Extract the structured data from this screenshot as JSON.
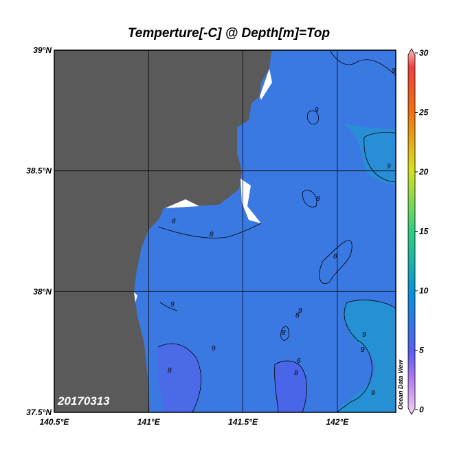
{
  "title": "Temperture[-C] @ Depth[m]=Top",
  "map": {
    "xlim": [
      140.5,
      142.31
    ],
    "ylim": [
      37.5,
      39
    ],
    "xticks": [
      {
        "value": 140.5,
        "label": "140.5°E"
      },
      {
        "value": 141,
        "label": "141°E"
      },
      {
        "value": 141.5,
        "label": "141.5°E"
      },
      {
        "value": 142,
        "label": "142°E"
      }
    ],
    "yticks": [
      {
        "value": 37.5,
        "label": "37.5°N"
      },
      {
        "value": 38,
        "label": "38°N"
      },
      {
        "value": 38.5,
        "label": "38.5°N"
      },
      {
        "value": 39,
        "label": "39°N"
      }
    ],
    "grid": true,
    "land_color": "#5a5a5a",
    "sea_color": "#3b79e2"
  },
  "colorbar": {
    "lim": [
      0,
      30
    ],
    "ticks": [
      0,
      5,
      10,
      15,
      20,
      25,
      30
    ]
  },
  "contour_labels": [
    "9",
    "9",
    "9",
    "8",
    "8",
    "8",
    "8",
    "9",
    "9",
    "8",
    "8",
    "9",
    "6",
    "8",
    "9",
    "8",
    "9",
    "9"
  ],
  "date_stamp": "20170313",
  "credit": "Ocean Data View"
}
